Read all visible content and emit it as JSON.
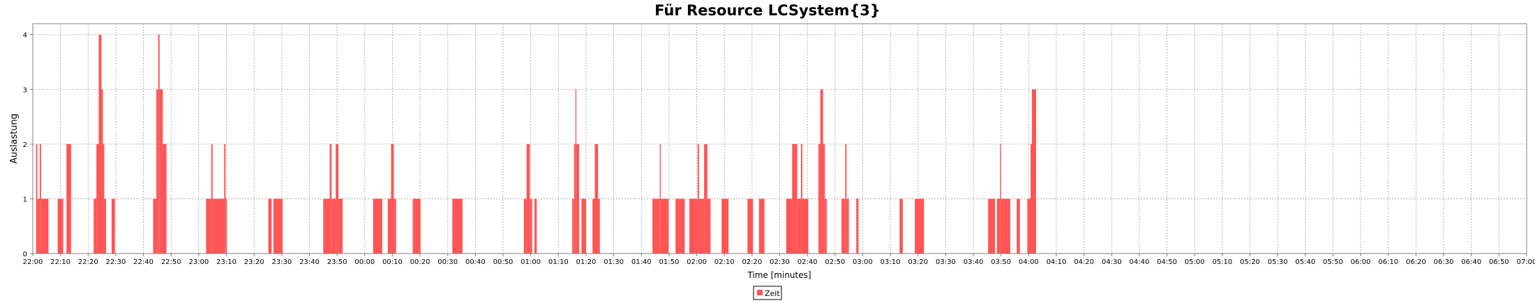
{
  "chart_data": {
    "type": "bar",
    "title": "Für Resource LCSystem{3}",
    "xlabel": "Time [minutes]",
    "ylabel": "Auslastung",
    "ylim": [
      0,
      4.2
    ],
    "yticks": [
      0,
      1,
      2,
      3,
      4
    ],
    "x_start": "22:00",
    "x_end": "07:00",
    "xticks": [
      "22:00",
      "22:10",
      "22:20",
      "22:30",
      "22:40",
      "22:50",
      "23:00",
      "23:10",
      "23:20",
      "23:30",
      "23:40",
      "23:50",
      "00:00",
      "00:10",
      "00:20",
      "00:30",
      "00:40",
      "00:50",
      "01:00",
      "01:10",
      "01:20",
      "01:30",
      "01:40",
      "01:50",
      "02:00",
      "02:10",
      "02:20",
      "02:30",
      "02:40",
      "02:50",
      "03:00",
      "03:10",
      "03:20",
      "03:30",
      "03:40",
      "03:50",
      "04:00",
      "04:10",
      "04:20",
      "04:30",
      "04:40",
      "04:50",
      "05:00",
      "05:10",
      "05:20",
      "05:30",
      "05:40",
      "05:50",
      "06:00",
      "06:10",
      "06:20",
      "06:30",
      "06:40",
      "06:50",
      "07:00"
    ],
    "grid": true,
    "legend_position": "bottom-center",
    "series": [
      {
        "name": "Zeit",
        "color": "#FF5555",
        "segments": [
          {
            "start": "22:01:10",
            "end": "22:01:40",
            "value": 2
          },
          {
            "start": "22:01:40",
            "end": "22:02:30",
            "value": 1
          },
          {
            "start": "22:02:30",
            "end": "22:03:00",
            "value": 2
          },
          {
            "start": "22:03:00",
            "end": "22:05:40",
            "value": 1
          },
          {
            "start": "22:09:00",
            "end": "22:11:00",
            "value": 1
          },
          {
            "start": "22:12:10",
            "end": "22:13:50",
            "value": 2
          },
          {
            "start": "22:22:00",
            "end": "22:23:00",
            "value": 1
          },
          {
            "start": "22:23:00",
            "end": "22:23:50",
            "value": 2
          },
          {
            "start": "22:23:50",
            "end": "22:24:50",
            "value": 4
          },
          {
            "start": "22:24:50",
            "end": "22:25:20",
            "value": 3
          },
          {
            "start": "22:25:20",
            "end": "22:25:50",
            "value": 2
          },
          {
            "start": "22:25:50",
            "end": "22:26:30",
            "value": 1
          },
          {
            "start": "22:28:30",
            "end": "22:29:40",
            "value": 1
          },
          {
            "start": "22:43:30",
            "end": "22:44:40",
            "value": 1
          },
          {
            "start": "22:44:40",
            "end": "22:45:20",
            "value": 3
          },
          {
            "start": "22:45:20",
            "end": "22:45:50",
            "value": 4
          },
          {
            "start": "22:45:50",
            "end": "22:47:00",
            "value": 3
          },
          {
            "start": "22:47:00",
            "end": "22:48:20",
            "value": 2
          },
          {
            "start": "23:02:40",
            "end": "23:04:30",
            "value": 1
          },
          {
            "start": "23:04:30",
            "end": "23:05:00",
            "value": 2
          },
          {
            "start": "23:05:00",
            "end": "23:09:10",
            "value": 1
          },
          {
            "start": "23:09:10",
            "end": "23:09:40",
            "value": 2
          },
          {
            "start": "23:09:40",
            "end": "23:10:10",
            "value": 1
          },
          {
            "start": "23:25:10",
            "end": "23:26:20",
            "value": 1
          },
          {
            "start": "23:27:00",
            "end": "23:30:20",
            "value": 1
          },
          {
            "start": "23:45:00",
            "end": "23:47:20",
            "value": 1
          },
          {
            "start": "23:47:20",
            "end": "23:48:00",
            "value": 2
          },
          {
            "start": "23:48:00",
            "end": "23:49:30",
            "value": 1
          },
          {
            "start": "23:49:30",
            "end": "23:50:30",
            "value": 2
          },
          {
            "start": "23:50:30",
            "end": "23:52:00",
            "value": 1
          },
          {
            "start": "00:03:00",
            "end": "00:06:20",
            "value": 1
          },
          {
            "start": "00:08:20",
            "end": "00:09:30",
            "value": 1
          },
          {
            "start": "00:09:30",
            "end": "00:10:30",
            "value": 2
          },
          {
            "start": "00:10:30",
            "end": "00:11:20",
            "value": 1
          },
          {
            "start": "00:17:20",
            "end": "00:20:10",
            "value": 1
          },
          {
            "start": "00:31:40",
            "end": "00:35:20",
            "value": 1
          },
          {
            "start": "00:57:30",
            "end": "00:58:30",
            "value": 1
          },
          {
            "start": "00:58:30",
            "end": "00:59:40",
            "value": 2
          },
          {
            "start": "00:59:40",
            "end": "01:00:30",
            "value": 1
          },
          {
            "start": "01:01:20",
            "end": "01:02:10",
            "value": 1
          },
          {
            "start": "01:15:00",
            "end": "01:15:40",
            "value": 1
          },
          {
            "start": "01:15:40",
            "end": "01:16:10",
            "value": 2
          },
          {
            "start": "01:16:10",
            "end": "01:16:30",
            "value": 3
          },
          {
            "start": "01:16:30",
            "end": "01:17:30",
            "value": 2
          },
          {
            "start": "01:18:20",
            "end": "01:20:00",
            "value": 1
          },
          {
            "start": "01:22:20",
            "end": "01:23:10",
            "value": 1
          },
          {
            "start": "01:23:10",
            "end": "01:24:20",
            "value": 2
          },
          {
            "start": "01:24:20",
            "end": "01:25:00",
            "value": 1
          },
          {
            "start": "01:44:00",
            "end": "01:46:40",
            "value": 1
          },
          {
            "start": "01:46:40",
            "end": "01:47:00",
            "value": 2
          },
          {
            "start": "01:47:00",
            "end": "01:49:50",
            "value": 1
          },
          {
            "start": "01:52:20",
            "end": "01:55:40",
            "value": 1
          },
          {
            "start": "01:57:20",
            "end": "02:00:20",
            "value": 1
          },
          {
            "start": "02:00:20",
            "end": "02:00:50",
            "value": 2
          },
          {
            "start": "02:00:50",
            "end": "02:02:40",
            "value": 1
          },
          {
            "start": "02:02:40",
            "end": "02:03:50",
            "value": 2
          },
          {
            "start": "02:03:50",
            "end": "02:05:00",
            "value": 1
          },
          {
            "start": "02:09:00",
            "end": "02:11:30",
            "value": 1
          },
          {
            "start": "02:18:20",
            "end": "02:20:20",
            "value": 1
          },
          {
            "start": "02:22:30",
            "end": "02:24:30",
            "value": 1
          },
          {
            "start": "02:32:20",
            "end": "02:34:30",
            "value": 1
          },
          {
            "start": "02:34:30",
            "end": "02:36:20",
            "value": 2
          },
          {
            "start": "02:36:20",
            "end": "02:37:40",
            "value": 1
          },
          {
            "start": "02:37:40",
            "end": "02:38:10",
            "value": 2
          },
          {
            "start": "02:38:10",
            "end": "02:40:20",
            "value": 1
          },
          {
            "start": "02:44:00",
            "end": "02:44:40",
            "value": 2
          },
          {
            "start": "02:44:40",
            "end": "02:45:40",
            "value": 3
          },
          {
            "start": "02:45:40",
            "end": "02:46:20",
            "value": 2
          },
          {
            "start": "02:46:20",
            "end": "02:47:00",
            "value": 1
          },
          {
            "start": "02:52:20",
            "end": "02:53:40",
            "value": 1
          },
          {
            "start": "02:53:40",
            "end": "02:54:10",
            "value": 2
          },
          {
            "start": "02:54:10",
            "end": "02:55:00",
            "value": 1
          },
          {
            "start": "02:57:40",
            "end": "02:58:30",
            "value": 1
          },
          {
            "start": "03:13:20",
            "end": "03:14:30",
            "value": 1
          },
          {
            "start": "03:18:50",
            "end": "03:22:10",
            "value": 1
          },
          {
            "start": "03:45:20",
            "end": "03:47:50",
            "value": 1
          },
          {
            "start": "03:48:30",
            "end": "03:49:40",
            "value": 1
          },
          {
            "start": "03:49:40",
            "end": "03:50:00",
            "value": 2
          },
          {
            "start": "03:50:00",
            "end": "03:53:20",
            "value": 1
          },
          {
            "start": "03:55:40",
            "end": "03:56:50",
            "value": 1
          },
          {
            "start": "03:59:30",
            "end": "04:00:40",
            "value": 1
          },
          {
            "start": "04:00:40",
            "end": "04:01:10",
            "value": 2
          },
          {
            "start": "04:01:10",
            "end": "04:02:40",
            "value": 3
          }
        ]
      }
    ]
  }
}
